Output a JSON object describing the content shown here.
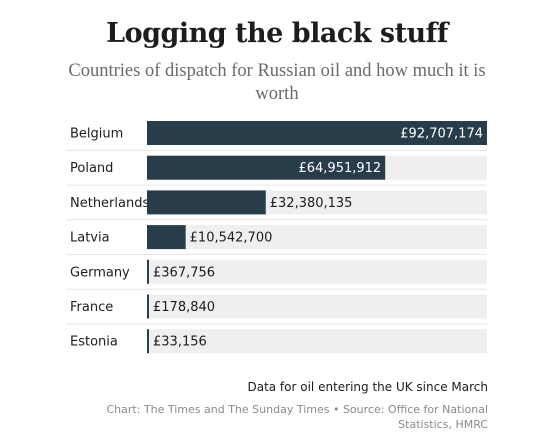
{
  "chart_data": {
    "type": "bar",
    "orientation": "horizontal",
    "title": "Logging the black stuff",
    "subtitle": "Countries of dispatch for Russian oil and how much it is worth",
    "categories": [
      "Belgium",
      "Poland",
      "Netherlands",
      "Latvia",
      "Germany",
      "France",
      "Estonia"
    ],
    "values": [
      92707174,
      64951912,
      32380135,
      10542700,
      367756,
      178840,
      33156
    ],
    "value_labels": [
      "£92,707,174",
      "£64,951,912",
      "£32,380,135",
      "£10,542,700",
      "£367,756",
      "£178,840",
      "£33,156"
    ],
    "xlim": [
      0,
      92707174
    ],
    "bar_color": "#283d4a",
    "track_color": "#efefef",
    "grid": false,
    "note": "Data for oil entering the UK since March",
    "source": "Chart: The Times and The Sunday Times • Source: Office for National Statistics, HMRC"
  }
}
